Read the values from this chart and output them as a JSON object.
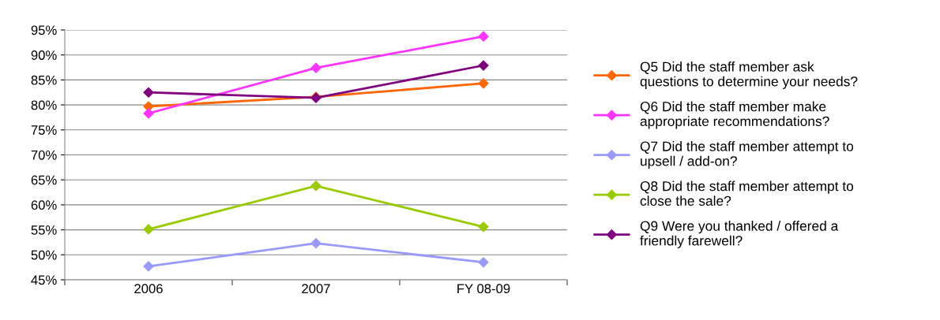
{
  "chart_data": {
    "type": "line",
    "categories": [
      "2006",
      "2007",
      "FY 08-09"
    ],
    "series": [
      {
        "name": "Q5 Did the staff member ask\nquestions to determine your needs?",
        "color": "#ff6600",
        "values": [
          79.7,
          81.6,
          84.3
        ]
      },
      {
        "name": "Q6 Did the staff member make\nappropriate recommendations?",
        "color": "#ff33ff",
        "values": [
          78.3,
          87.4,
          93.7
        ]
      },
      {
        "name": "Q7 Did the staff member attempt to\nupsell / add-on?",
        "color": "#9999ff",
        "values": [
          47.7,
          52.3,
          48.5
        ]
      },
      {
        "name": "Q8 Did the staff member attempt to\nclose the sale?",
        "color": "#99cc00",
        "values": [
          55.1,
          63.8,
          55.6
        ]
      },
      {
        "name": "Q9 Were you thanked / offered a\nfriendly farewell?",
        "color": "#800080",
        "values": [
          82.5,
          81.4,
          87.9
        ]
      }
    ],
    "ylim": [
      45,
      95
    ],
    "yticks": [
      {
        "value": 45,
        "label": "45%"
      },
      {
        "value": 50,
        "label": "50%"
      },
      {
        "value": 55,
        "label": "55%"
      },
      {
        "value": 60,
        "label": "60%"
      },
      {
        "value": 65,
        "label": "65%"
      },
      {
        "value": 70,
        "label": "70%"
      },
      {
        "value": 75,
        "label": "75%"
      },
      {
        "value": 80,
        "label": "80%"
      },
      {
        "value": 85,
        "label": "85%"
      },
      {
        "value": 90,
        "label": "90%"
      },
      {
        "value": 95,
        "label": "95%"
      }
    ],
    "grid": "y",
    "legend": "right",
    "marker": "diamond",
    "line_style": "solid"
  }
}
